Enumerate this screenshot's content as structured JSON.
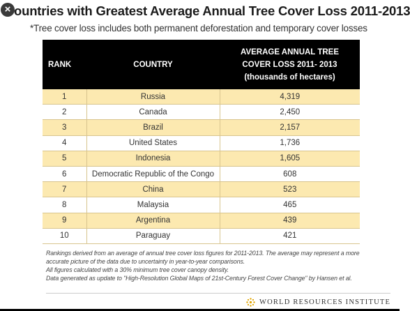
{
  "close_icon": "×",
  "title": "ountries with Greatest Average Annual Tree Cover Loss 2011-2013",
  "subtitle": "*Tree cover loss includes both permanent deforestation and temporary cover losses",
  "table": {
    "headers": {
      "rank": "RANK",
      "country": "COUNTRY",
      "loss_line1": "AVERAGE ANNUAL TREE",
      "loss_line2": "COVER LOSS 2011- 2013",
      "loss_line3": "(thousands of hectares)"
    },
    "rows": [
      {
        "rank": "1",
        "country": "Russia",
        "loss": "4,319"
      },
      {
        "rank": "2",
        "country": "Canada",
        "loss": "2,450"
      },
      {
        "rank": "3",
        "country": "Brazil",
        "loss": "2,157"
      },
      {
        "rank": "4",
        "country": "United States",
        "loss": "1,736"
      },
      {
        "rank": "5",
        "country": "Indonesia",
        "loss": "1,605"
      },
      {
        "rank": "6",
        "country": "Democratic Republic of the Congo",
        "loss": "608"
      },
      {
        "rank": "7",
        "country": "China",
        "loss": "523"
      },
      {
        "rank": "8",
        "country": "Malaysia",
        "loss": "465"
      },
      {
        "rank": "9",
        "country": "Argentina",
        "loss": "439"
      },
      {
        "rank": "10",
        "country": "Paraguay",
        "loss": "421"
      }
    ],
    "band_color": "#fce9b0",
    "header_color": "#000000"
  },
  "notes": {
    "line1": "Rankings derived from an average of annual tree cover loss figures for 2011-2013. The average may represent a more",
    "line2": "accurate picture of the data due to uncertainty in year-to-year comparisons.",
    "line3": "All figures calculated with a 30% minimum tree cover canopy density.",
    "line4": "Data generated as update to \"High-Resolution Global Maps of 21st-Century Forest Cover Change\" by Hansen et al."
  },
  "footer": {
    "logo_icon": "wri-logo-icon",
    "org": "WORLD RESOURCES INSTITUTE"
  }
}
